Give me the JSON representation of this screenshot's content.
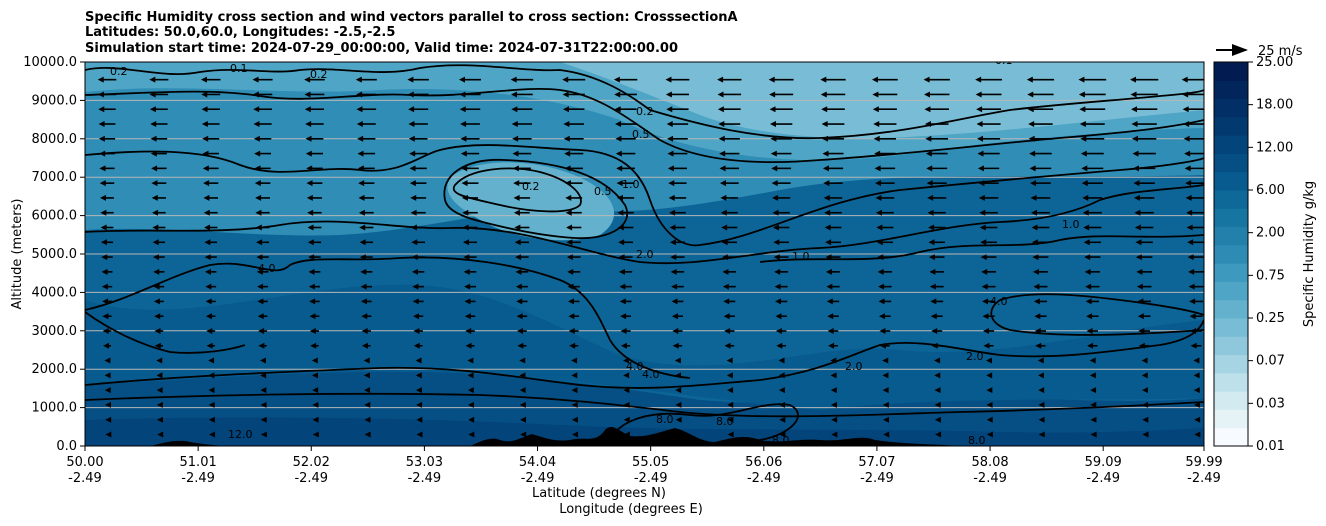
{
  "chart_data": {
    "type": "heatmap",
    "title_lines": [
      "Specific Humidity cross section and wind vectors parallel to cross section: CrosssectionA",
      "Latitudes: 50.0,60.0, Longitudes: -2.5,-2.5",
      "Simulation start time: 2024-07-29_00:00:00, Valid time: 2024-07-31T22:00:00.00"
    ],
    "xlabel_lines": [
      "Latitude (degrees N)",
      "Longitude (degrees E)"
    ],
    "ylabel": "Altitude (meters)",
    "x_ticks": [
      {
        "lat": "50.00",
        "lon": "-2.49"
      },
      {
        "lat": "51.01",
        "lon": "-2.49"
      },
      {
        "lat": "52.02",
        "lon": "-2.49"
      },
      {
        "lat": "53.03",
        "lon": "-2.49"
      },
      {
        "lat": "54.04",
        "lon": "-2.49"
      },
      {
        "lat": "55.05",
        "lon": "-2.49"
      },
      {
        "lat": "56.06",
        "lon": "-2.49"
      },
      {
        "lat": "57.07",
        "lon": "-2.49"
      },
      {
        "lat": "58.08",
        "lon": "-2.49"
      },
      {
        "lat": "59.09",
        "lon": "-2.49"
      },
      {
        "lat": "59.99",
        "lon": "-2.49"
      }
    ],
    "x_range": [
      50.0,
      59.99
    ],
    "y_ticks": [
      "0.0",
      "1000.0",
      "2000.0",
      "3000.0",
      "4000.0",
      "5000.0",
      "6000.0",
      "7000.0",
      "8000.0",
      "9000.0",
      "10000.0"
    ],
    "y_range": [
      0,
      10000
    ],
    "grid": "horizontal",
    "colorbar": {
      "label": "Specific Humidity g/kg",
      "tick_labels": [
        "0.01",
        "0.03",
        "0.07",
        "0.25",
        "0.75",
        "2.00",
        "6.00",
        "12.00",
        "18.00",
        "25.00"
      ],
      "colors": [
        "#f7fbff",
        "#e6f3f6",
        "#d2eaf0",
        "#bde0ea",
        "#a6d4e3",
        "#8fc8dc",
        "#78bdd5",
        "#63b1cd",
        "#4fa5c5",
        "#3d99bd",
        "#2e8bb3",
        "#2280aa",
        "#1775a1",
        "#0e6898",
        "#085b8e",
        "#054f84",
        "#03447a",
        "#023a70",
        "#023066",
        "#02265c",
        "#021b50"
      ]
    },
    "quiver_key": {
      "label": "25 m/s",
      "speed": 25
    },
    "wind_vectors_direction": "toward decreasing latitude (southward, parallel to cross section)",
    "contour_levels": [
      "0.1",
      "0.2",
      "0.5",
      "1.0",
      "2.0",
      "4.0",
      "8.0",
      "12.0"
    ],
    "contour_labels_visible": [
      "0.2",
      "0.1",
      "0.2",
      "0.1",
      "0.2",
      "0.5",
      "0.2",
      "0.5",
      "1.0",
      "1.0",
      "2.0",
      "1.0",
      "4.0",
      "4.0",
      "2.0",
      "2.0",
      "4.0",
      "4.0",
      "8.0",
      "8.0",
      "8.0",
      "8.0",
      "12.0"
    ]
  }
}
